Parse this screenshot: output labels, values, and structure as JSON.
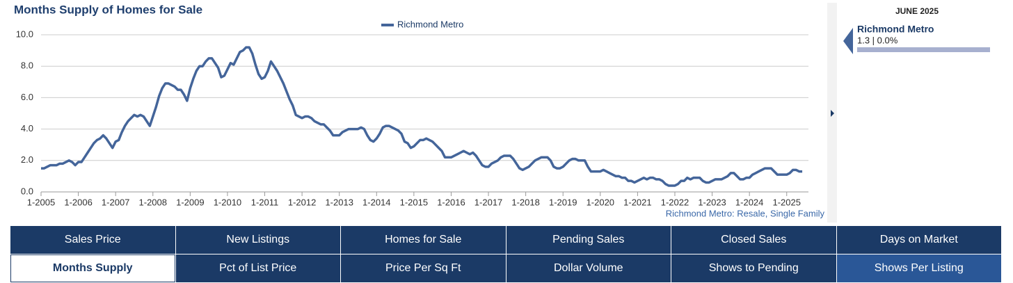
{
  "chart_data": {
    "type": "line",
    "title": "Months Supply of Homes for Sale",
    "legend_position": "top",
    "xlim": [
      "2005-01",
      "2025-08"
    ],
    "xticks": [
      {
        "value": "2005-01",
        "label": "1-2005"
      },
      {
        "value": "2006-01",
        "label": "1-2006"
      },
      {
        "value": "2007-01",
        "label": "1-2007"
      },
      {
        "value": "2008-01",
        "label": "1-2008"
      },
      {
        "value": "2009-01",
        "label": "1-2009"
      },
      {
        "value": "2010-01",
        "label": "1-2010"
      },
      {
        "value": "2011-01",
        "label": "1-2011"
      },
      {
        "value": "2012-01",
        "label": "1-2012"
      },
      {
        "value": "2013-01",
        "label": "1-2013"
      },
      {
        "value": "2014-01",
        "label": "1-2014"
      },
      {
        "value": "2015-01",
        "label": "1-2015"
      },
      {
        "value": "2016-01",
        "label": "1-2016"
      },
      {
        "value": "2017-01",
        "label": "1-2017"
      },
      {
        "value": "2018-01",
        "label": "1-2018"
      },
      {
        "value": "2019-01",
        "label": "1-2019"
      },
      {
        "value": "2020-01",
        "label": "1-2020"
      },
      {
        "value": "2021-01",
        "label": "1-2021"
      },
      {
        "value": "2022-01",
        "label": "1-2022"
      },
      {
        "value": "2023-01",
        "label": "1-2023"
      },
      {
        "value": "2024-01",
        "label": "1-2024"
      },
      {
        "value": "2025-01",
        "label": "1-2025"
      }
    ],
    "ylim": [
      0,
      10
    ],
    "yticks": [
      {
        "value": 0,
        "label": "0.0"
      },
      {
        "value": 2,
        "label": "2.0"
      },
      {
        "value": 4,
        "label": "4.0"
      },
      {
        "value": 6,
        "label": "6.0"
      },
      {
        "value": 8,
        "label": "8.0"
      },
      {
        "value": 10,
        "label": "10.0"
      }
    ],
    "grid": true,
    "x": [
      "2005-01",
      "2005-02",
      "2005-03",
      "2005-04",
      "2005-05",
      "2005-06",
      "2005-07",
      "2005-08",
      "2005-09",
      "2005-10",
      "2005-11",
      "2005-12",
      "2006-01",
      "2006-02",
      "2006-03",
      "2006-04",
      "2006-05",
      "2006-06",
      "2006-07",
      "2006-08",
      "2006-09",
      "2006-10",
      "2006-11",
      "2006-12",
      "2007-01",
      "2007-02",
      "2007-03",
      "2007-04",
      "2007-05",
      "2007-06",
      "2007-07",
      "2007-08",
      "2007-09",
      "2007-10",
      "2007-11",
      "2007-12",
      "2008-01",
      "2008-02",
      "2008-03",
      "2008-04",
      "2008-05",
      "2008-06",
      "2008-07",
      "2008-08",
      "2008-09",
      "2008-10",
      "2008-11",
      "2008-12",
      "2009-01",
      "2009-02",
      "2009-03",
      "2009-04",
      "2009-05",
      "2009-06",
      "2009-07",
      "2009-08",
      "2009-09",
      "2009-10",
      "2009-11",
      "2009-12",
      "2010-01",
      "2010-02",
      "2010-03",
      "2010-04",
      "2010-05",
      "2010-06",
      "2010-07",
      "2010-08",
      "2010-09",
      "2010-10",
      "2010-11",
      "2010-12",
      "2011-01",
      "2011-02",
      "2011-03",
      "2011-04",
      "2011-05",
      "2011-06",
      "2011-07",
      "2011-08",
      "2011-09",
      "2011-10",
      "2011-11",
      "2011-12",
      "2012-01",
      "2012-02",
      "2012-03",
      "2012-04",
      "2012-05",
      "2012-06",
      "2012-07",
      "2012-08",
      "2012-09",
      "2012-10",
      "2012-11",
      "2012-12",
      "2013-01",
      "2013-02",
      "2013-03",
      "2013-04",
      "2013-05",
      "2013-06",
      "2013-07",
      "2013-08",
      "2013-09",
      "2013-10",
      "2013-11",
      "2013-12",
      "2014-01",
      "2014-02",
      "2014-03",
      "2014-04",
      "2014-05",
      "2014-06",
      "2014-07",
      "2014-08",
      "2014-09",
      "2014-10",
      "2014-11",
      "2014-12",
      "2015-01",
      "2015-02",
      "2015-03",
      "2015-04",
      "2015-05",
      "2015-06",
      "2015-07",
      "2015-08",
      "2015-09",
      "2015-10",
      "2015-11",
      "2015-12",
      "2016-01",
      "2016-02",
      "2016-03",
      "2016-04",
      "2016-05",
      "2016-06",
      "2016-07",
      "2016-08",
      "2016-09",
      "2016-10",
      "2016-11",
      "2016-12",
      "2017-01",
      "2017-02",
      "2017-03",
      "2017-04",
      "2017-05",
      "2017-06",
      "2017-07",
      "2017-08",
      "2017-09",
      "2017-10",
      "2017-11",
      "2017-12",
      "2018-01",
      "2018-02",
      "2018-03",
      "2018-04",
      "2018-05",
      "2018-06",
      "2018-07",
      "2018-08",
      "2018-09",
      "2018-10",
      "2018-11",
      "2018-12",
      "2019-01",
      "2019-02",
      "2019-03",
      "2019-04",
      "2019-05",
      "2019-06",
      "2019-07",
      "2019-08",
      "2019-09",
      "2019-10",
      "2019-11",
      "2019-12",
      "2020-01",
      "2020-02",
      "2020-03",
      "2020-04",
      "2020-05",
      "2020-06",
      "2020-07",
      "2020-08",
      "2020-09",
      "2020-10",
      "2020-11",
      "2020-12",
      "2021-01",
      "2021-02",
      "2021-03",
      "2021-04",
      "2021-05",
      "2021-06",
      "2021-07",
      "2021-08",
      "2021-09",
      "2021-10",
      "2021-11",
      "2021-12",
      "2022-01",
      "2022-02",
      "2022-03",
      "2022-04",
      "2022-05",
      "2022-06",
      "2022-07",
      "2022-08",
      "2022-09",
      "2022-10",
      "2022-11",
      "2022-12",
      "2023-01",
      "2023-02",
      "2023-03",
      "2023-04",
      "2023-05",
      "2023-06",
      "2023-07",
      "2023-08",
      "2023-09",
      "2023-10",
      "2023-11",
      "2023-12",
      "2024-01",
      "2024-02",
      "2024-03",
      "2024-04",
      "2024-05",
      "2024-06",
      "2024-07",
      "2024-08",
      "2024-09",
      "2024-10",
      "2024-11",
      "2024-12",
      "2025-01",
      "2025-02",
      "2025-03",
      "2025-04",
      "2025-05",
      "2025-06"
    ],
    "series": [
      {
        "name": "Richmond Metro",
        "color": "#44659a",
        "values": [
          1.5,
          1.5,
          1.6,
          1.7,
          1.7,
          1.7,
          1.8,
          1.8,
          1.9,
          2.0,
          1.9,
          1.7,
          1.9,
          1.9,
          2.2,
          2.5,
          2.8,
          3.1,
          3.3,
          3.4,
          3.6,
          3.4,
          3.1,
          2.8,
          3.2,
          3.3,
          3.8,
          4.2,
          4.5,
          4.7,
          4.9,
          4.8,
          4.9,
          4.8,
          4.5,
          4.2,
          4.8,
          5.4,
          6.1,
          6.6,
          6.9,
          6.9,
          6.8,
          6.7,
          6.5,
          6.5,
          6.2,
          5.8,
          6.6,
          7.2,
          7.7,
          8.0,
          8.0,
          8.3,
          8.5,
          8.5,
          8.2,
          7.9,
          7.3,
          7.4,
          7.8,
          8.2,
          8.1,
          8.5,
          8.9,
          9.0,
          9.2,
          9.2,
          8.8,
          8.1,
          7.5,
          7.2,
          7.3,
          7.7,
          8.3,
          8.0,
          7.7,
          7.3,
          6.9,
          6.4,
          5.9,
          5.5,
          4.9,
          4.8,
          4.7,
          4.8,
          4.8,
          4.7,
          4.5,
          4.4,
          4.3,
          4.3,
          4.1,
          3.9,
          3.6,
          3.6,
          3.6,
          3.8,
          3.9,
          4.0,
          4.0,
          4.0,
          4.0,
          4.1,
          4.0,
          3.6,
          3.3,
          3.2,
          3.4,
          3.7,
          4.1,
          4.2,
          4.2,
          4.1,
          4.0,
          3.9,
          3.7,
          3.2,
          3.1,
          2.8,
          2.9,
          3.1,
          3.3,
          3.3,
          3.4,
          3.3,
          3.2,
          3.0,
          2.8,
          2.6,
          2.2,
          2.2,
          2.2,
          2.3,
          2.4,
          2.5,
          2.6,
          2.5,
          2.4,
          2.5,
          2.3,
          2.0,
          1.7,
          1.6,
          1.6,
          1.8,
          1.9,
          2.0,
          2.2,
          2.3,
          2.3,
          2.3,
          2.1,
          1.8,
          1.5,
          1.4,
          1.5,
          1.6,
          1.8,
          2.0,
          2.1,
          2.2,
          2.2,
          2.2,
          2.0,
          1.6,
          1.5,
          1.5,
          1.6,
          1.8,
          2.0,
          2.1,
          2.1,
          2.0,
          2.0,
          2.0,
          1.6,
          1.3,
          1.3,
          1.3,
          1.3,
          1.4,
          1.3,
          1.2,
          1.1,
          1.0,
          1.0,
          0.9,
          0.9,
          0.7,
          0.7,
          0.6,
          0.7,
          0.8,
          0.9,
          0.8,
          0.9,
          0.9,
          0.8,
          0.8,
          0.7,
          0.5,
          0.4,
          0.4,
          0.4,
          0.5,
          0.7,
          0.7,
          0.9,
          0.8,
          0.9,
          0.9,
          0.9,
          0.7,
          0.6,
          0.6,
          0.7,
          0.8,
          0.8,
          0.8,
          0.9,
          1.0,
          1.2,
          1.2,
          1.0,
          0.8,
          0.8,
          0.9,
          0.9,
          1.1,
          1.2,
          1.3,
          1.4,
          1.5,
          1.5,
          1.5,
          1.3,
          1.1,
          1.1,
          1.1,
          1.1,
          1.2,
          1.4,
          1.4,
          1.3,
          1.3
        ]
      }
    ],
    "footnote": "Richmond Metro: Resale, Single Family"
  },
  "sidebar": {
    "period": "JUNE 2025",
    "name": "Richmond Metro",
    "summary": "1.3 | 0.0%"
  },
  "tabs": {
    "rows": [
      [
        "Sales Price",
        "New Listings",
        "Homes for Sale",
        "Pending Sales",
        "Closed Sales",
        "Days on Market"
      ],
      [
        "Months Supply",
        "Pct of List Price",
        "Price Per Sq Ft",
        "Dollar Volume",
        "Shows to Pending",
        "Shows Per Listing"
      ]
    ],
    "selected": "Months Supply",
    "highlighted": "Shows Per Listing"
  }
}
